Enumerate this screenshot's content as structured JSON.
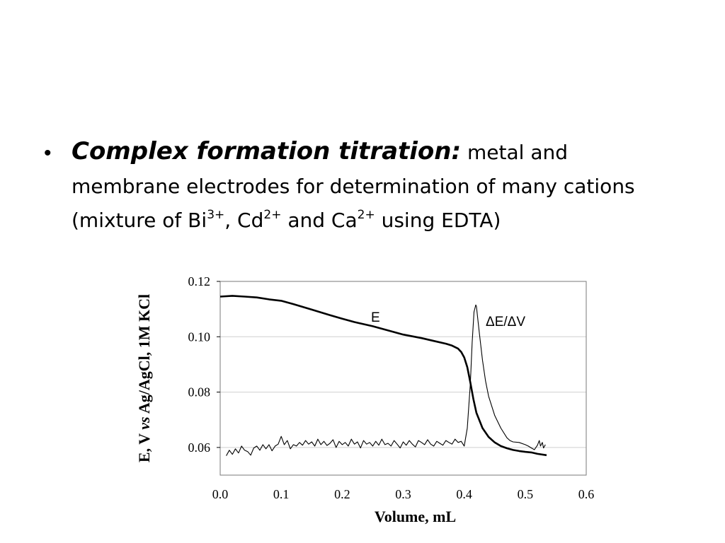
{
  "slide": {
    "bullet": {
      "symbol": "•",
      "title": "Complex formation titration:",
      "text1": " metal and membrane electrodes for determination of many cations (mixture of Bi",
      "sup1": "3+",
      "text2": ", Cd",
      "sup2": "2+",
      "text3": " and Ca",
      "sup3": "2+",
      "text4": " using EDTA)"
    }
  },
  "chart_data": {
    "type": "line",
    "xlabel": "Volume, mL",
    "ylabel_parts": [
      "E, V ",
      "vs",
      " Ag/AgCl, 1M KCl"
    ],
    "xlim": [
      0.0,
      0.6
    ],
    "ylim": [
      0.05,
      0.12
    ],
    "xticks": [
      "0.0",
      "0.1",
      "0.2",
      "0.3",
      "0.4",
      "0.5",
      "0.6"
    ],
    "yticks": [
      "0.06",
      "0.08",
      "0.10",
      "0.12"
    ],
    "ytick_values": [
      0.06,
      0.08,
      0.1,
      0.12
    ],
    "grid": true,
    "series": [
      {
        "name": "E",
        "color": "#000000",
        "thick": true,
        "x": [
          0.0,
          0.02,
          0.04,
          0.06,
          0.08,
          0.1,
          0.12,
          0.15,
          0.18,
          0.2,
          0.22,
          0.25,
          0.28,
          0.3,
          0.33,
          0.35,
          0.37,
          0.38,
          0.39,
          0.395,
          0.4,
          0.405,
          0.41,
          0.415,
          0.42,
          0.43,
          0.44,
          0.45,
          0.46,
          0.47,
          0.48,
          0.49,
          0.5,
          0.51,
          0.52,
          0.535
        ],
        "y": [
          0.1145,
          0.1148,
          0.1145,
          0.1142,
          0.1135,
          0.113,
          0.1118,
          0.1098,
          0.1078,
          0.1065,
          0.1053,
          0.1038,
          0.102,
          0.1008,
          0.0995,
          0.0985,
          0.0975,
          0.0968,
          0.0957,
          0.0945,
          0.0925,
          0.089,
          0.0835,
          0.0775,
          0.0725,
          0.067,
          0.0638,
          0.0618,
          0.0605,
          0.0597,
          0.0591,
          0.0587,
          0.0584,
          0.0582,
          0.0577,
          0.0572
        ]
      },
      {
        "name": "ΔE/ΔV",
        "color": "#000000",
        "thick": false,
        "x": [
          0.01,
          0.015,
          0.02,
          0.025,
          0.03,
          0.035,
          0.04,
          0.045,
          0.05,
          0.055,
          0.06,
          0.065,
          0.07,
          0.075,
          0.08,
          0.085,
          0.09,
          0.095,
          0.1,
          0.105,
          0.11,
          0.115,
          0.12,
          0.125,
          0.13,
          0.135,
          0.14,
          0.145,
          0.15,
          0.155,
          0.16,
          0.165,
          0.17,
          0.175,
          0.18,
          0.185,
          0.19,
          0.195,
          0.2,
          0.205,
          0.21,
          0.215,
          0.22,
          0.225,
          0.23,
          0.235,
          0.24,
          0.245,
          0.25,
          0.255,
          0.26,
          0.265,
          0.27,
          0.275,
          0.28,
          0.285,
          0.29,
          0.295,
          0.3,
          0.305,
          0.31,
          0.315,
          0.32,
          0.325,
          0.33,
          0.335,
          0.34,
          0.345,
          0.35,
          0.355,
          0.36,
          0.365,
          0.37,
          0.375,
          0.38,
          0.385,
          0.39,
          0.395,
          0.4,
          0.405,
          0.41,
          0.413,
          0.416,
          0.419,
          0.42,
          0.422,
          0.425,
          0.43,
          0.435,
          0.44,
          0.45,
          0.46,
          0.47,
          0.475,
          0.48,
          0.49,
          0.5,
          0.505,
          0.51,
          0.515,
          0.52,
          0.523,
          0.525,
          0.528,
          0.53,
          0.533
        ],
        "y": [
          0.057,
          0.059,
          0.0575,
          0.0595,
          0.058,
          0.0605,
          0.059,
          0.0585,
          0.0572,
          0.0598,
          0.0605,
          0.059,
          0.061,
          0.0595,
          0.061,
          0.0588,
          0.0605,
          0.0612,
          0.064,
          0.061,
          0.0625,
          0.0595,
          0.061,
          0.0605,
          0.0618,
          0.0608,
          0.0625,
          0.0612,
          0.062,
          0.0605,
          0.063,
          0.061,
          0.0622,
          0.0607,
          0.0615,
          0.0628,
          0.06,
          0.0622,
          0.061,
          0.0618,
          0.0605,
          0.063,
          0.0612,
          0.062,
          0.0598,
          0.0625,
          0.0612,
          0.0618,
          0.0605,
          0.0622,
          0.0608,
          0.063,
          0.061,
          0.0615,
          0.0605,
          0.0625,
          0.0612,
          0.0598,
          0.062,
          0.0608,
          0.0625,
          0.0612,
          0.0602,
          0.0625,
          0.0618,
          0.061,
          0.0628,
          0.0612,
          0.0605,
          0.0622,
          0.0615,
          0.0608,
          0.0625,
          0.0618,
          0.0612,
          0.063,
          0.0618,
          0.0622,
          0.0605,
          0.067,
          0.083,
          0.098,
          0.109,
          0.1115,
          0.111,
          0.107,
          0.101,
          0.0915,
          0.084,
          0.0785,
          0.0715,
          0.067,
          0.0635,
          0.0625,
          0.062,
          0.0618,
          0.061,
          0.0605,
          0.0598,
          0.0592,
          0.0608,
          0.0625,
          0.0605,
          0.0618,
          0.0598,
          0.061
        ]
      }
    ],
    "labels": {
      "e_label": "E",
      "de_label": "ΔE/ΔV"
    }
  }
}
